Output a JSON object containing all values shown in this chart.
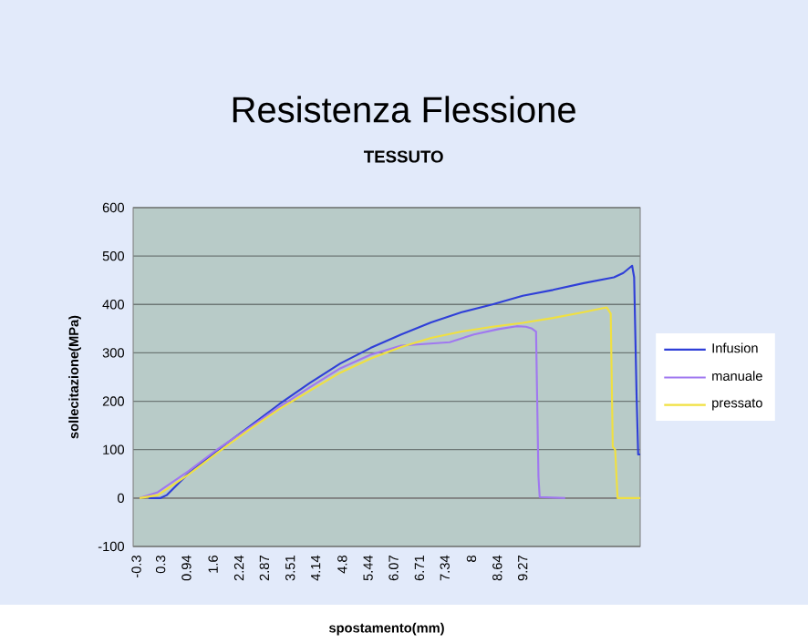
{
  "chart_data": {
    "type": "line",
    "title": "Resistenza Flessione",
    "subtitle": "TESSUTO",
    "xlabel": "spostamento(mm)",
    "ylabel": "sollecitazione(MPa)",
    "xlim": [
      -0.38,
      12.18
    ],
    "xticks": [
      -0.3,
      0.3,
      0.94,
      1.6,
      2.24,
      2.87,
      3.51,
      4.14,
      4.8,
      5.44,
      6.07,
      6.71,
      7.34,
      8,
      8.64,
      9.27
    ],
    "ylim": [
      -100,
      600
    ],
    "yticks": [
      -100,
      0,
      100,
      200,
      300,
      400,
      500,
      600
    ],
    "grid": "y",
    "legend": "right",
    "marker": "none",
    "line_style": "solid",
    "series": [
      {
        "name": "Infusion",
        "color": "#2f3fd8",
        "x": [
          0.0,
          0.3,
          0.45,
          0.98,
          1.73,
          2.34,
          3.24,
          4.0,
          4.75,
          5.5,
          6.26,
          7.0,
          7.76,
          8.52,
          9.27,
          10.02,
          10.78,
          11.53,
          11.76,
          11.98,
          12.03,
          12.09,
          12.13,
          12.18
        ],
        "values": [
          0,
          0,
          6,
          50,
          100,
          138,
          194,
          238,
          278,
          310,
          338,
          363,
          384,
          400,
          418,
          430,
          444,
          456,
          465,
          480,
          456,
          213,
          90,
          90
        ]
      },
      {
        "name": "manuale",
        "color": "#a078f0",
        "x": [
          -0.22,
          0.23,
          0.98,
          1.73,
          2.49,
          3.24,
          4.0,
          4.75,
          5.5,
          6.26,
          7.46,
          8.06,
          8.67,
          9.12,
          9.35,
          9.5,
          9.6,
          9.66,
          9.69,
          10.32
        ],
        "values": [
          0,
          12,
          55,
          102,
          145,
          188,
          229,
          268,
          296,
          315,
          322,
          338,
          349,
          355,
          354,
          350,
          344,
          44,
          2,
          0
        ]
      },
      {
        "name": "pressato",
        "color": "#f0e040",
        "x": [
          -0.22,
          0.23,
          0.98,
          1.73,
          2.49,
          3.24,
          4.0,
          4.75,
          5.5,
          6.26,
          7.0,
          7.76,
          8.52,
          9.27,
          10.02,
          10.78,
          11.35,
          11.45,
          11.5,
          11.56,
          11.62,
          12.18
        ],
        "values": [
          0,
          6,
          48,
          95,
          141,
          184,
          222,
          259,
          288,
          312,
          331,
          344,
          354,
          362,
          372,
          384,
          394,
          381,
          106,
          100,
          0,
          0
        ]
      }
    ]
  }
}
